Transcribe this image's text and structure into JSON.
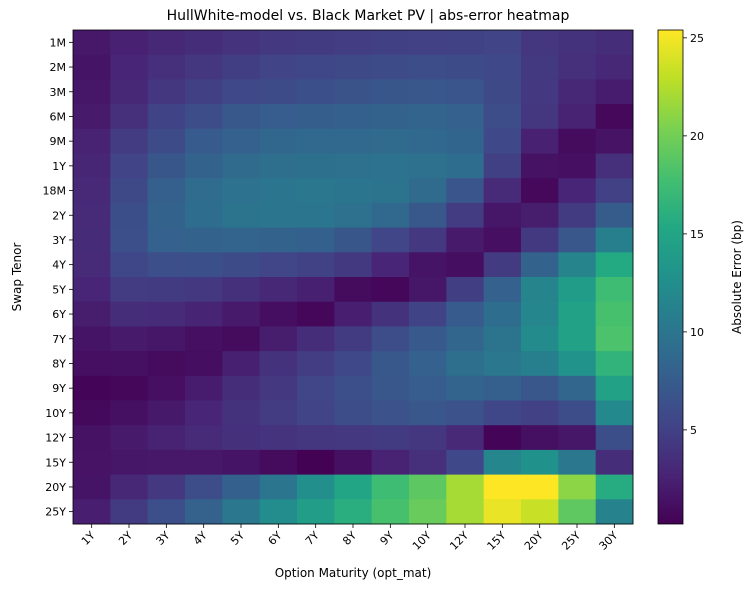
{
  "chart_data": {
    "type": "heatmap",
    "title": "HullWhite-model vs. Black Market PV  |  abs-error heatmap",
    "xlabel": "Option Maturity (opt_mat)",
    "ylabel": "Swap Tenor",
    "colorbar_label": "Absolute Error  (bp)",
    "colormap": "viridis",
    "vmin": 0.2,
    "vmax": 25.4,
    "colorbar_ticks": [
      5,
      10,
      15,
      20,
      25
    ],
    "x_categories": [
      "1Y",
      "2Y",
      "3Y",
      "4Y",
      "5Y",
      "6Y",
      "7Y",
      "8Y",
      "9Y",
      "10Y",
      "12Y",
      "15Y",
      "20Y",
      "25Y",
      "30Y"
    ],
    "y_categories": [
      "1M",
      "2M",
      "3M",
      "6M",
      "9M",
      "1Y",
      "18M",
      "2Y",
      "3Y",
      "4Y",
      "5Y",
      "6Y",
      "7Y",
      "8Y",
      "9Y",
      "10Y",
      "12Y",
      "15Y",
      "20Y",
      "25Y"
    ],
    "values": [
      [
        1.8,
        2.5,
        3.0,
        3.4,
        3.9,
        4.3,
        4.5,
        4.7,
        4.9,
        5.0,
        5.1,
        5.3,
        4.2,
        3.8,
        3.4
      ],
      [
        1.6,
        2.8,
        3.6,
        4.2,
        4.8,
        5.3,
        5.5,
        5.8,
        6.0,
        6.1,
        6.0,
        5.6,
        4.4,
        3.6,
        3.0
      ],
      [
        1.7,
        3.0,
        4.2,
        4.9,
        5.6,
        6.0,
        6.4,
        6.7,
        6.9,
        7.0,
        6.8,
        5.8,
        4.3,
        3.0,
        2.1
      ],
      [
        2.0,
        3.6,
        5.2,
        6.1,
        7.1,
        7.6,
        7.7,
        7.9,
        8.2,
        8.3,
        8.0,
        6.1,
        4.1,
        2.6,
        0.7
      ],
      [
        2.6,
        4.6,
        6.0,
        7.4,
        8.0,
        8.6,
        8.7,
        8.8,
        9.0,
        8.8,
        8.4,
        5.6,
        2.5,
        1.0,
        1.5
      ],
      [
        2.9,
        5.3,
        6.9,
        8.2,
        8.9,
        9.4,
        9.5,
        9.6,
        9.7,
        9.6,
        9.2,
        4.9,
        1.4,
        1.2,
        3.6
      ],
      [
        3.1,
        5.8,
        7.8,
        9.1,
        9.7,
        10.1,
        10.2,
        10.0,
        9.9,
        8.9,
        6.8,
        3.2,
        0.7,
        2.8,
        5.0
      ],
      [
        3.2,
        6.2,
        8.2,
        9.2,
        9.9,
        10.1,
        10.0,
        9.6,
        8.7,
        7.1,
        4.6,
        1.7,
        2.2,
        4.5,
        7.5
      ],
      [
        3.3,
        6.3,
        8.0,
        8.2,
        8.3,
        8.2,
        7.9,
        6.9,
        5.4,
        4.3,
        2.0,
        1.2,
        4.4,
        7.0,
        11.0
      ],
      [
        3.2,
        5.5,
        6.3,
        6.4,
        6.0,
        5.4,
        5.1,
        4.4,
        2.8,
        1.6,
        1.1,
        4.5,
        8.2,
        11.5,
        15.5
      ],
      [
        2.8,
        4.6,
        4.5,
        4.3,
        3.7,
        3.0,
        2.4,
        0.9,
        0.6,
        1.7,
        4.8,
        8.0,
        11.5,
        14.0,
        17.5
      ],
      [
        2.2,
        3.4,
        3.3,
        2.7,
        2.0,
        1.1,
        0.6,
        2.3,
        3.8,
        5.2,
        7.4,
        9.2,
        11.8,
        14.5,
        18.0
      ],
      [
        1.6,
        2.0,
        1.7,
        1.2,
        1.0,
        2.2,
        3.4,
        4.5,
        6.1,
        7.2,
        8.5,
        9.8,
        12.2,
        14.5,
        18.2
      ],
      [
        1.2,
        1.3,
        1.0,
        1.1,
        2.4,
        3.8,
        4.7,
        5.6,
        7.1,
        8.0,
        9.4,
        10.2,
        11.0,
        13.0,
        16.5
      ],
      [
        0.5,
        0.6,
        1.2,
        2.1,
        3.4,
        4.3,
        5.4,
        6.3,
        7.0,
        7.6,
        8.3,
        7.8,
        7.0,
        8.5,
        14.5
      ],
      [
        0.8,
        1.3,
        1.9,
        2.8,
        3.8,
        4.6,
        5.3,
        6.1,
        6.6,
        7.0,
        6.6,
        5.5,
        5.0,
        6.1,
        12.0
      ],
      [
        1.4,
        2.0,
        2.6,
        3.2,
        3.7,
        3.9,
        4.1,
        4.3,
        4.5,
        4.2,
        3.1,
        0.5,
        1.3,
        1.7,
        6.2
      ],
      [
        1.5,
        1.7,
        1.8,
        1.8,
        1.6,
        1.0,
        0.3,
        1.3,
        2.6,
        3.6,
        5.6,
        11.8,
        12.8,
        10.2,
        3.4
      ],
      [
        1.6,
        3.0,
        4.3,
        6.1,
        7.9,
        10.0,
        12.6,
        15.0,
        17.5,
        19.0,
        22.0,
        25.4,
        25.4,
        21.0,
        15.7
      ],
      [
        2.3,
        4.5,
        6.3,
        8.1,
        10.2,
        12.3,
        14.2,
        16.0,
        18.0,
        19.5,
        22.0,
        24.6,
        23.3,
        19.1,
        11.3
      ]
    ]
  }
}
